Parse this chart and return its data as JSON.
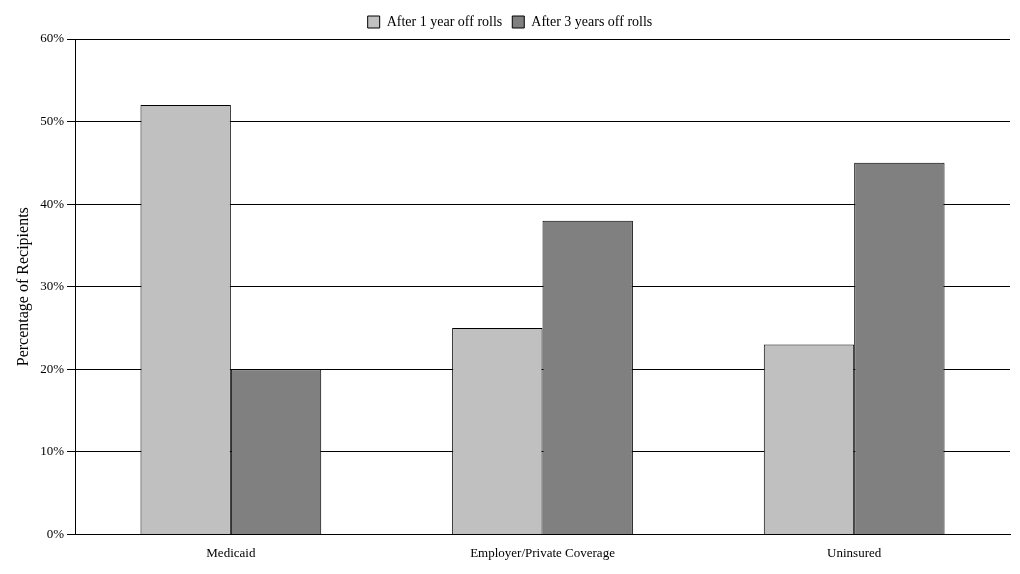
{
  "chart_data": {
    "type": "bar",
    "ylabel": "Percentage of Recipients",
    "categories": [
      "Medicaid",
      "Employer/Private Coverage",
      "Uninsured"
    ],
    "series": [
      {
        "name": "After 1 year off rolls",
        "color": "#c0c0c0",
        "values": [
          52,
          25,
          23
        ]
      },
      {
        "name": "After 3 years off rolls",
        "color": "#808080",
        "values": [
          20,
          38,
          45
        ]
      }
    ],
    "ylim": [
      0,
      60
    ],
    "yticks": [
      {
        "value": 0,
        "label": "0%"
      },
      {
        "value": 10,
        "label": "10%"
      },
      {
        "value": 20,
        "label": "20%"
      },
      {
        "value": 30,
        "label": "30%"
      },
      {
        "value": 40,
        "label": "40%"
      },
      {
        "value": 50,
        "label": "50%"
      },
      {
        "value": 60,
        "label": "60%"
      }
    ],
    "grid": "y",
    "legend": "top"
  }
}
